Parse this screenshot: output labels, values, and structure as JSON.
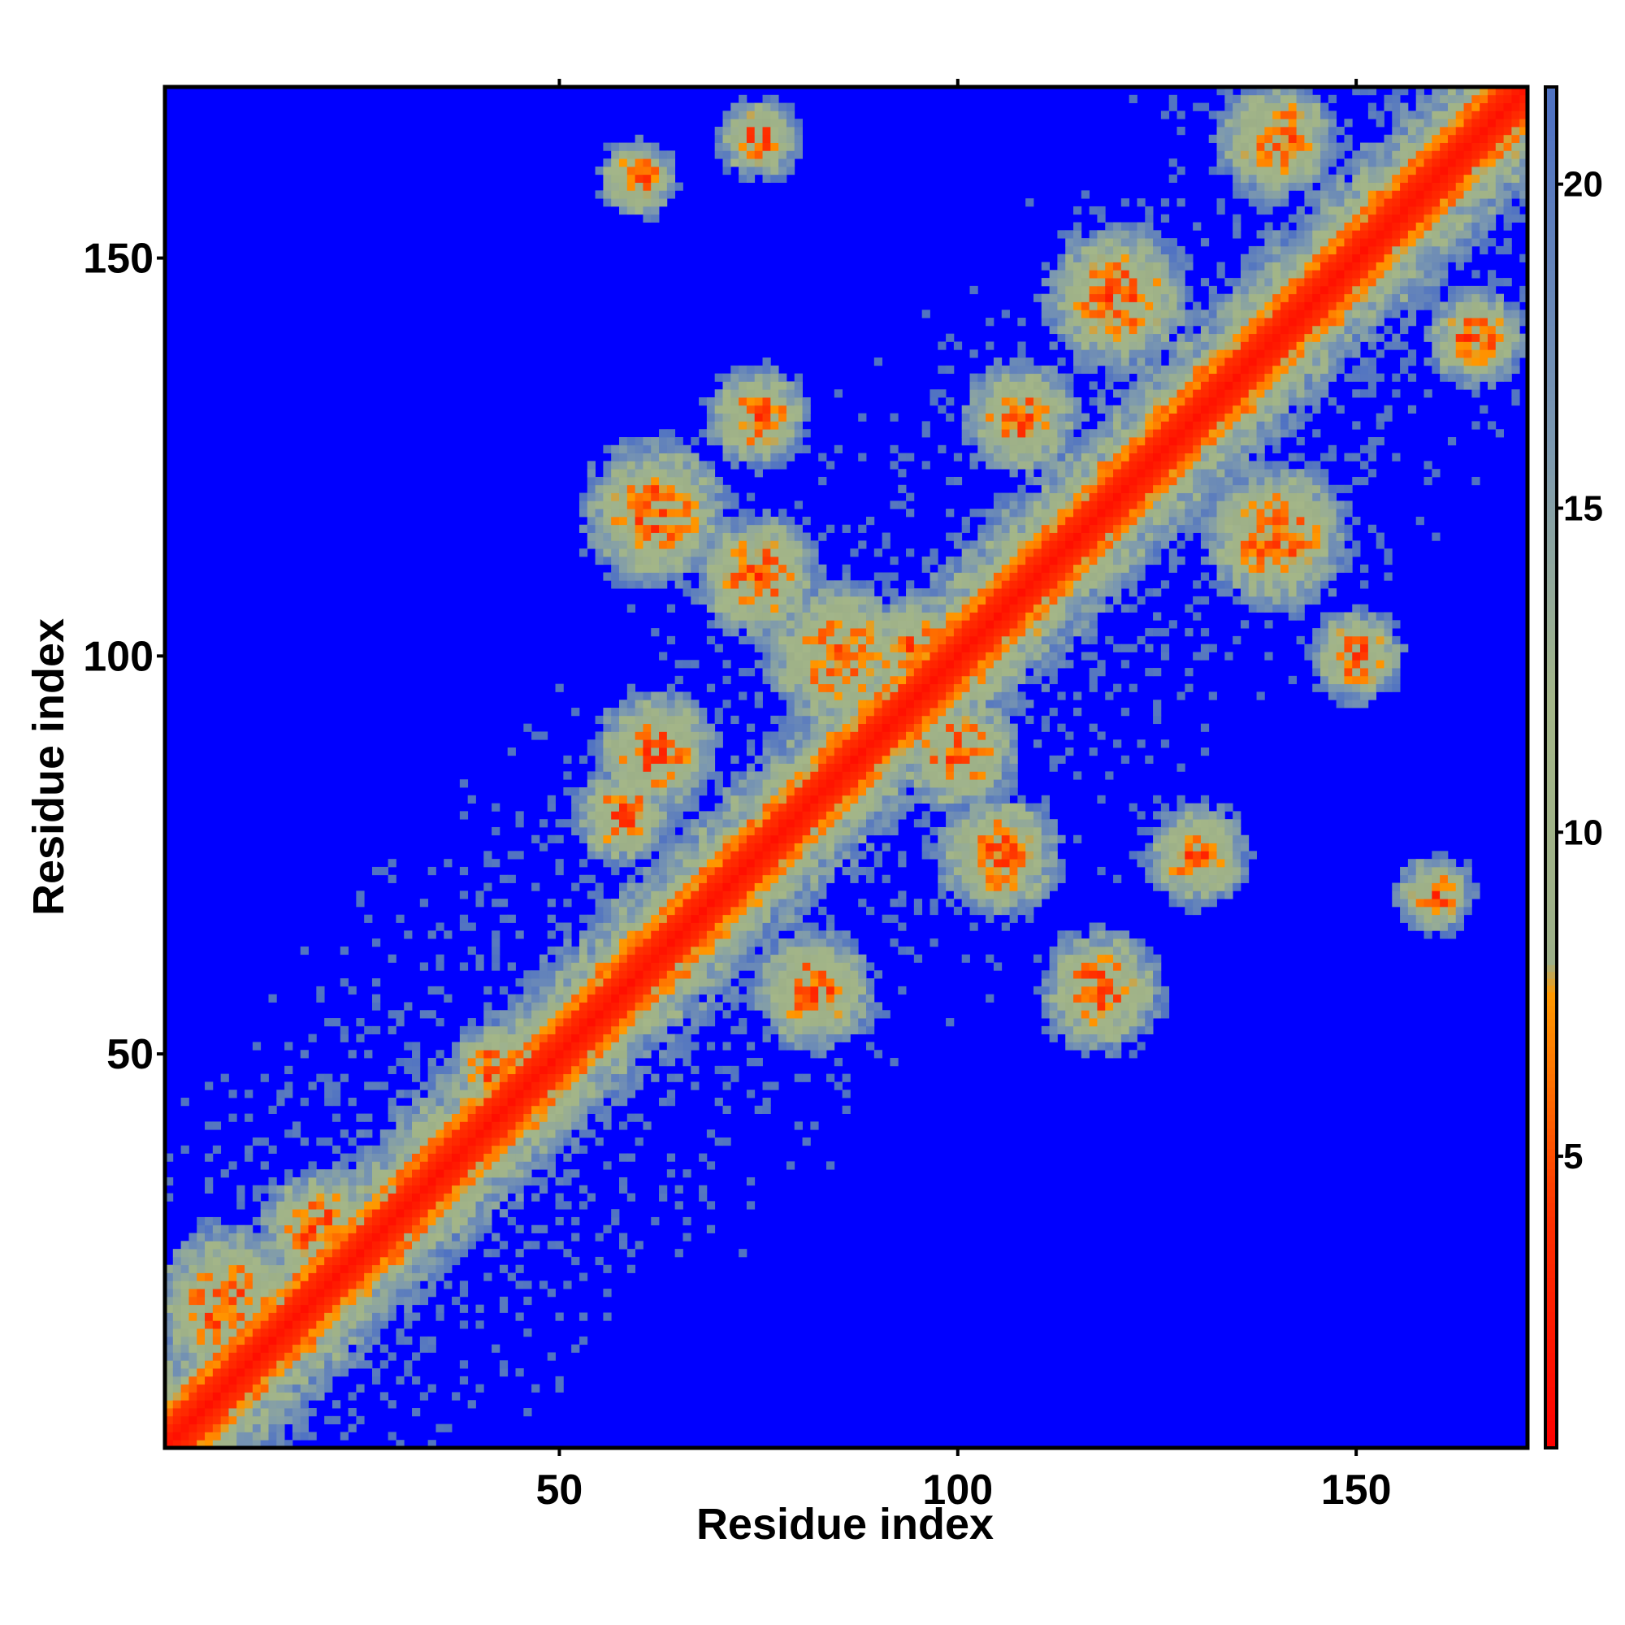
{
  "chart_data": {
    "type": "heatmap",
    "title": "",
    "xlabel": "Residue index",
    "ylabel": "Residue index",
    "xlim": [
      1,
      171
    ],
    "ylim": [
      1,
      171
    ],
    "x_ticks": [
      50,
      100,
      150
    ],
    "y_ticks": [
      50,
      100,
      150
    ],
    "colorbar": {
      "range": [
        0.5,
        21.5
      ],
      "ticks": [
        5,
        10,
        15,
        20
      ],
      "stops": [
        {
          "value": 0.5,
          "color": "#ff0000"
        },
        {
          "value": 4.0,
          "color": "#ff3000"
        },
        {
          "value": 7.5,
          "color": "#ff9900"
        },
        {
          "value": 8.0,
          "color": "#9caf88"
        },
        {
          "value": 12.0,
          "color": "#a4b688"
        },
        {
          "value": 16.0,
          "color": "#7b98b0"
        },
        {
          "value": 21.5,
          "color": "#4c6fc4"
        }
      ],
      "above_cutoff_color": "#0000ff",
      "cutoff": 21
    },
    "note": "",
    "diagonal_band": {
      "red_max_offset": 3,
      "orange_max_offset": 5
    },
    "contact_clusters": [
      {
        "x": 9,
        "y": 18,
        "spread": 8,
        "strength": 0.9
      },
      {
        "x": 20,
        "y": 28,
        "spread": 6,
        "strength": 0.85
      },
      {
        "x": 42,
        "y": 48,
        "spread": 5,
        "strength": 0.8
      },
      {
        "x": 62,
        "y": 118,
        "spread": 7,
        "strength": 0.9
      },
      {
        "x": 62,
        "y": 88,
        "spread": 6,
        "strength": 0.85
      },
      {
        "x": 58,
        "y": 80,
        "spread": 5,
        "strength": 0.8
      },
      {
        "x": 85,
        "y": 100,
        "spread": 7,
        "strength": 0.9
      },
      {
        "x": 95,
        "y": 100,
        "spread": 6,
        "strength": 0.9
      },
      {
        "x": 100,
        "y": 88,
        "spread": 6,
        "strength": 0.85
      },
      {
        "x": 110,
        "y": 108,
        "spread": 5,
        "strength": 0.8
      },
      {
        "x": 82,
        "y": 58,
        "spread": 6,
        "strength": 0.85
      },
      {
        "x": 118,
        "y": 58,
        "spread": 6,
        "strength": 0.85
      },
      {
        "x": 140,
        "y": 115,
        "spread": 7,
        "strength": 0.9
      },
      {
        "x": 120,
        "y": 145,
        "spread": 7,
        "strength": 0.9
      },
      {
        "x": 140,
        "y": 165,
        "spread": 6,
        "strength": 0.85
      },
      {
        "x": 165,
        "y": 140,
        "spread": 5,
        "strength": 0.8
      },
      {
        "x": 108,
        "y": 130,
        "spread": 6,
        "strength": 0.75
      },
      {
        "x": 75,
        "y": 130,
        "spread": 6,
        "strength": 0.6
      },
      {
        "x": 75,
        "y": 165,
        "spread": 5,
        "strength": 0.55
      },
      {
        "x": 130,
        "y": 75,
        "spread": 6,
        "strength": 0.6
      },
      {
        "x": 160,
        "y": 70,
        "spread": 5,
        "strength": 0.5
      },
      {
        "x": 60,
        "y": 160,
        "spread": 5,
        "strength": 0.5
      },
      {
        "x": 150,
        "y": 100,
        "spread": 6,
        "strength": 0.5
      },
      {
        "x": 105,
        "y": 75,
        "spread": 7,
        "strength": 0.65
      },
      {
        "x": 75,
        "y": 110,
        "spread": 7,
        "strength": 0.65
      }
    ]
  }
}
